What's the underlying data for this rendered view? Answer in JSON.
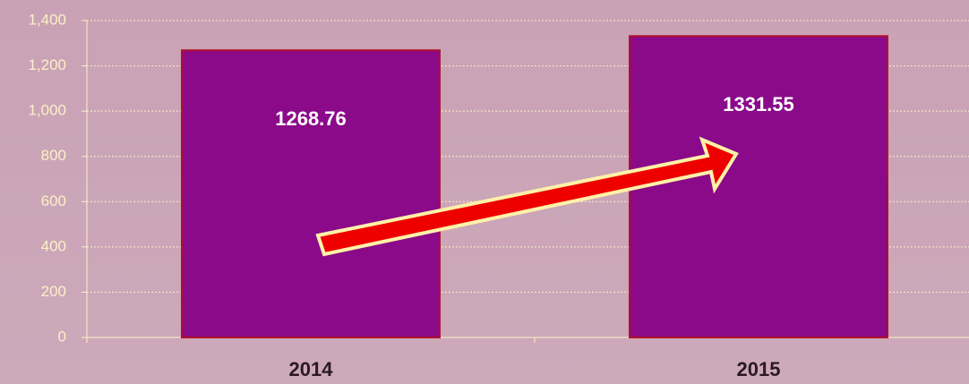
{
  "chart_data": {
    "type": "bar",
    "categories": [
      "2014",
      "2015"
    ],
    "values": [
      1268.76,
      1331.55
    ],
    "color": "#8a0a8a",
    "ylim": [
      0,
      1400
    ],
    "yticks": [
      0,
      200,
      400,
      600,
      800,
      {
        "value": 1000,
        "label": "1,000"
      },
      {
        "value": 1200,
        "label": "1,200"
      },
      {
        "value": 1400,
        "label": "1,400"
      }
    ],
    "grid": true
  }
}
